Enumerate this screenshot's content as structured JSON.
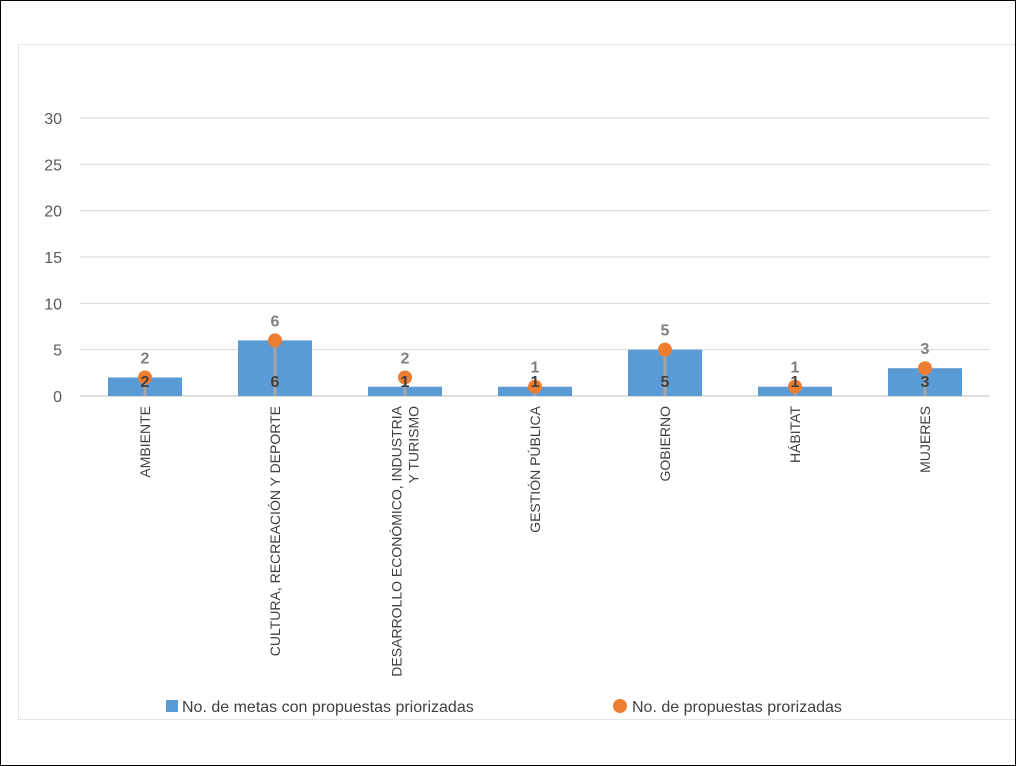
{
  "chart_data": {
    "type": "bar",
    "categories": [
      "AMBIENTE",
      "CULTURA, RECREACIÓN Y DEPORTE",
      "DESARROLLO ECONÓMICO, INDUSTRIA Y TURISMO",
      "GESTIÓN PÚBLICA",
      "GOBIERNO",
      "HÁBITAT",
      "MUJERES"
    ],
    "category_lines": [
      [
        "AMBIENTE"
      ],
      [
        "CULTURA, RECREACIÓN Y DEPORTE"
      ],
      [
        "DESARROLLO ECONÓMICO, INDUSTRIA",
        "Y TURISMO"
      ],
      [
        "GESTIÓN PÚBLICA"
      ],
      [
        "GOBIERNO"
      ],
      [
        "HÁBITAT"
      ],
      [
        "MUJERES"
      ]
    ],
    "series": [
      {
        "name": "No. de metas con propuestas priorizadas",
        "type": "bar",
        "values": [
          2,
          6,
          1,
          1,
          5,
          1,
          3
        ],
        "color": "#5b9bd5"
      },
      {
        "name": "No. de propuestas prorizadas",
        "type": "scatter",
        "values": [
          2,
          6,
          2,
          1,
          5,
          1,
          3
        ],
        "color": "#ed7d31"
      }
    ],
    "ylim": [
      0,
      30
    ],
    "yticks": [
      0,
      5,
      10,
      15,
      20,
      25,
      30
    ],
    "grid": true,
    "legend_position": "bottom",
    "title": "",
    "xlabel": "",
    "ylabel": ""
  }
}
